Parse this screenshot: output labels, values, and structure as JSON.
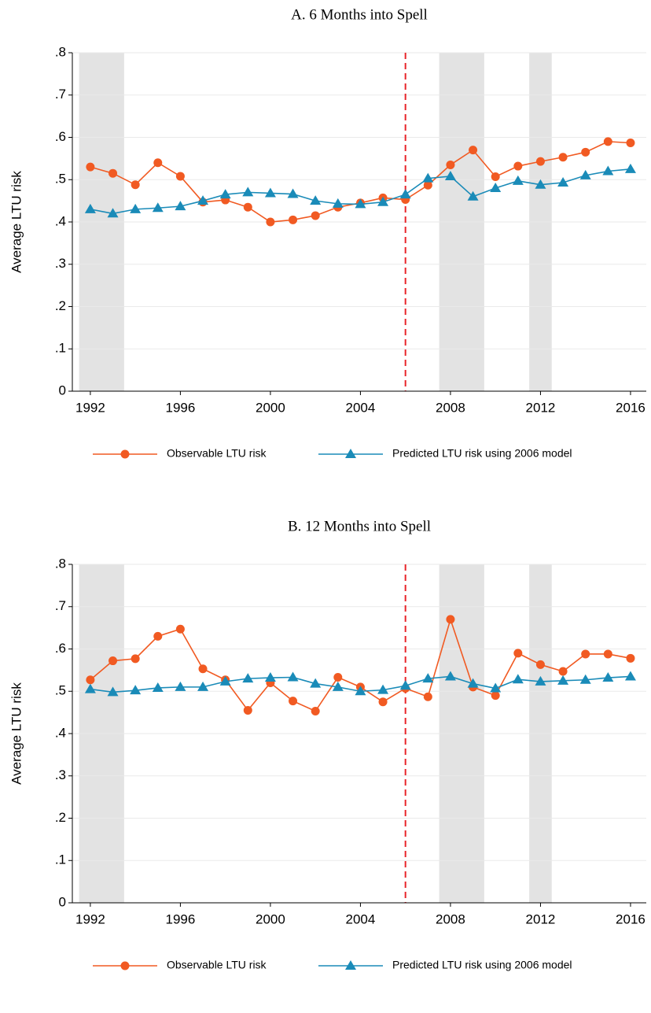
{
  "chart_data": [
    {
      "type": "line",
      "title": "A. 6 Months into Spell",
      "y_label": "Average LTU risk",
      "x": [
        1992,
        1993,
        1994,
        1995,
        1996,
        1997,
        1998,
        1999,
        2000,
        2001,
        2002,
        2003,
        2004,
        2005,
        2006,
        2007,
        2008,
        2009,
        2010,
        2011,
        2012,
        2013,
        2014,
        2015,
        2016
      ],
      "series": [
        {
          "name": "Observable LTU risk",
          "color": "#f15a22",
          "marker": "circle",
          "values": [
            0.53,
            0.515,
            0.488,
            0.54,
            0.508,
            0.447,
            0.452,
            0.435,
            0.4,
            0.405,
            0.415,
            0.435,
            0.445,
            0.457,
            0.453,
            0.487,
            0.535,
            0.57,
            0.507,
            0.532,
            0.543,
            0.553,
            0.565,
            0.59,
            0.587
          ]
        },
        {
          "name": "Predicted LTU risk using 2006 model",
          "color": "#1a8bb8",
          "marker": "triangle",
          "values": [
            0.43,
            0.42,
            0.43,
            0.433,
            0.437,
            0.45,
            0.465,
            0.47,
            0.468,
            0.466,
            0.45,
            0.443,
            0.442,
            0.447,
            0.465,
            0.503,
            0.508,
            0.46,
            0.48,
            0.497,
            0.488,
            0.493,
            0.51,
            0.52,
            0.525
          ]
        }
      ],
      "xlim": [
        1991.2,
        2016.7
      ],
      "xticks": [
        1992,
        1996,
        2000,
        2004,
        2008,
        2012,
        2016
      ],
      "ylim": [
        0,
        0.8
      ],
      "yticks": [
        0,
        {
          "value": 0.1,
          "label": ".1"
        },
        {
          "value": 0.2,
          "label": ".2"
        },
        {
          "value": 0.3,
          "label": ".3"
        },
        {
          "value": 0.4,
          "label": ".4"
        },
        {
          "value": 0.5,
          "label": ".5"
        },
        {
          "value": 0.6,
          "label": ".6"
        },
        {
          "value": 0.7,
          "label": ".7"
        },
        {
          "value": 0.8,
          "label": ".8"
        }
      ],
      "grid": true,
      "shaded_regions": [
        [
          1991.5,
          1993.5
        ],
        [
          2007.5,
          2009.5
        ],
        [
          2011.5,
          2012.5
        ]
      ],
      "vline": 2006,
      "legend": "bottom"
    },
    {
      "type": "line",
      "title": "B. 12 Months into Spell",
      "y_label": "Average LTU risk",
      "x": [
        1992,
        1993,
        1994,
        1995,
        1996,
        1997,
        1998,
        1999,
        2000,
        2001,
        2002,
        2003,
        2004,
        2005,
        2006,
        2007,
        2008,
        2009,
        2010,
        2011,
        2012,
        2013,
        2014,
        2015,
        2016
      ],
      "series": [
        {
          "name": "Observable LTU risk",
          "color": "#f15a22",
          "marker": "circle",
          "values": [
            0.527,
            0.572,
            0.577,
            0.63,
            0.647,
            0.553,
            0.527,
            0.455,
            0.52,
            0.477,
            0.453,
            0.533,
            0.51,
            0.475,
            0.507,
            0.487,
            0.67,
            0.51,
            0.49,
            0.59,
            0.563,
            0.547,
            0.588,
            0.588,
            0.578
          ]
        },
        {
          "name": "Predicted LTU risk using 2006 model",
          "color": "#1a8bb8",
          "marker": "triangle",
          "values": [
            0.505,
            0.498,
            0.502,
            0.508,
            0.51,
            0.51,
            0.523,
            0.53,
            0.532,
            0.533,
            0.518,
            0.51,
            0.5,
            0.503,
            0.513,
            0.53,
            0.535,
            0.518,
            0.507,
            0.528,
            0.523,
            0.525,
            0.527,
            0.532,
            0.535
          ]
        }
      ],
      "xlim": [
        1991.2,
        2016.7
      ],
      "xticks": [
        1992,
        1996,
        2000,
        2004,
        2008,
        2012,
        2016
      ],
      "ylim": [
        0,
        0.8
      ],
      "yticks": [
        0,
        {
          "value": 0.1,
          "label": ".1"
        },
        {
          "value": 0.2,
          "label": ".2"
        },
        {
          "value": 0.3,
          "label": ".3"
        },
        {
          "value": 0.4,
          "label": ".4"
        },
        {
          "value": 0.5,
          "label": ".5"
        },
        {
          "value": 0.6,
          "label": ".6"
        },
        {
          "value": 0.7,
          "label": ".7"
        },
        {
          "value": 0.8,
          "label": ".8"
        }
      ],
      "grid": true,
      "shaded_regions": [
        [
          1991.5,
          1993.5
        ],
        [
          2007.5,
          2009.5
        ],
        [
          2011.5,
          2012.5
        ]
      ],
      "vline": 2006,
      "legend": "bottom"
    }
  ]
}
